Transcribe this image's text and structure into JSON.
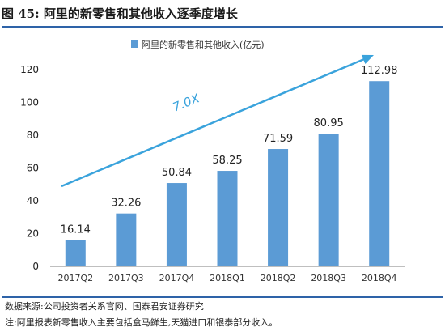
{
  "figure": {
    "title": "图 45:  阿里的新零售和其他收入逐季度增长",
    "source": "数据来源:公司投资者关系官网、国泰君安证券研究",
    "note": "注:阿里报表新零售收入主要包括盒马鲜生,天猫进口和银泰部分收入。"
  },
  "chart_data": {
    "type": "bar",
    "title": "",
    "legend": "阿里的新零售和其他收入(亿元)",
    "legend_position": "top-center",
    "categories": [
      "2017Q2",
      "2017Q3",
      "2017Q4",
      "2018Q1",
      "2018Q2",
      "2018Q3",
      "2018Q4"
    ],
    "values": [
      16.14,
      32.26,
      50.84,
      58.25,
      71.59,
      80.95,
      112.98
    ],
    "data_labels": [
      "16.14",
      "32.26",
      "50.84",
      "58.25",
      "71.59",
      "80.95",
      "112.98"
    ],
    "ylim": [
      0,
      120
    ],
    "yticks": [
      0,
      20,
      40,
      60,
      80,
      100,
      120
    ],
    "xlabel": "",
    "ylabel": "",
    "grid": false,
    "bar_color": "#5b9bd5",
    "annotation": {
      "text": "7.0X",
      "color": "#3aa3dc"
    }
  }
}
